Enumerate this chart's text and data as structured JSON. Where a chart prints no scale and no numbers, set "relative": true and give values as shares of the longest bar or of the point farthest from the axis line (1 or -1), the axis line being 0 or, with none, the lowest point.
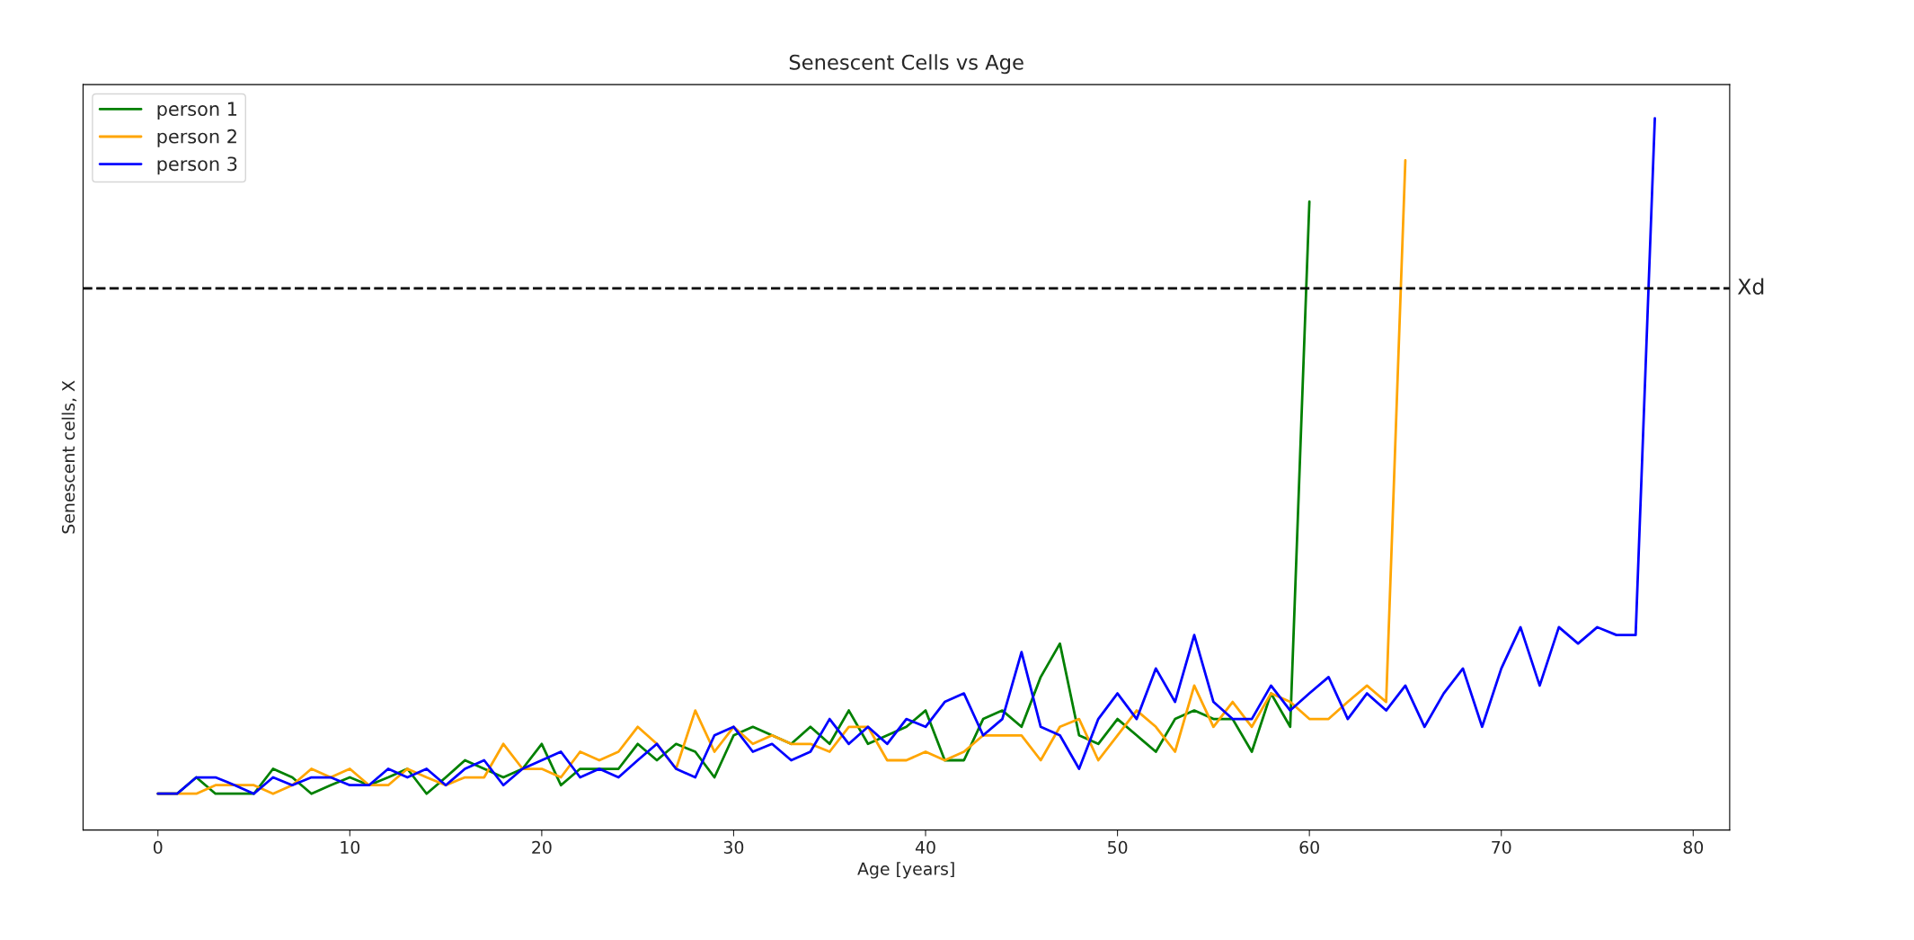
{
  "chart_data": {
    "type": "line",
    "title": "Senescent Cells vs Age",
    "xlabel": "Age [years]",
    "ylabel": "Senescent cells, X",
    "relative": true,
    "xlim": [
      -3.9,
      81.9
    ],
    "xticks": [
      0,
      10,
      20,
      30,
      40,
      50,
      60,
      70,
      80
    ],
    "legend": "top left",
    "grid": false,
    "marker": "none",
    "line_style": "solid",
    "ref_lines": [
      {
        "axis": "y",
        "value": 0.761,
        "label": "Xd",
        "color": "#000000",
        "line_style": "dashed"
      }
    ],
    "series": [
      {
        "name": "person 1",
        "color": "#008000",
        "x": [
          0,
          1,
          2,
          3,
          4,
          5,
          6,
          7,
          8,
          9,
          10,
          11,
          12,
          13,
          14,
          15,
          16,
          17,
          18,
          19,
          20,
          21,
          22,
          23,
          24,
          25,
          26,
          27,
          28,
          29,
          30,
          31,
          32,
          33,
          34,
          35,
          36,
          37,
          38,
          39,
          40,
          41,
          42,
          43,
          44,
          45,
          46,
          47,
          48,
          49,
          50,
          51,
          52,
          53,
          54,
          55,
          56,
          57,
          58,
          59,
          60
        ],
        "values": [
          0.051,
          0.051,
          0.074,
          0.051,
          0.051,
          0.051,
          0.086,
          0.074,
          0.051,
          0.063,
          0.074,
          0.063,
          0.074,
          0.086,
          0.051,
          0.074,
          0.098,
          0.086,
          0.074,
          0.086,
          0.121,
          0.063,
          0.086,
          0.086,
          0.086,
          0.121,
          0.098,
          0.121,
          0.11,
          0.074,
          0.133,
          0.145,
          0.133,
          0.121,
          0.145,
          0.121,
          0.168,
          0.121,
          0.133,
          0.145,
          0.168,
          0.098,
          0.098,
          0.156,
          0.168,
          0.145,
          0.215,
          0.262,
          0.133,
          0.121,
          0.156,
          0.133,
          0.11,
          0.156,
          0.168,
          0.156,
          0.156,
          0.11,
          0.192,
          0.145,
          0.883
        ]
      },
      {
        "name": "person 2",
        "color": "#ffa500",
        "x": [
          0,
          1,
          2,
          3,
          4,
          5,
          6,
          7,
          8,
          9,
          10,
          11,
          12,
          13,
          14,
          15,
          16,
          17,
          18,
          19,
          20,
          21,
          22,
          23,
          24,
          25,
          26,
          27,
          28,
          29,
          30,
          31,
          32,
          33,
          34,
          35,
          36,
          37,
          38,
          39,
          40,
          41,
          42,
          43,
          44,
          45,
          46,
          47,
          48,
          49,
          50,
          51,
          52,
          53,
          54,
          55,
          56,
          57,
          58,
          59,
          60,
          61,
          62,
          63,
          64,
          65
        ],
        "values": [
          0.051,
          0.051,
          0.051,
          0.063,
          0.063,
          0.063,
          0.051,
          0.063,
          0.086,
          0.074,
          0.086,
          0.063,
          0.063,
          0.086,
          0.074,
          0.063,
          0.074,
          0.074,
          0.121,
          0.086,
          0.086,
          0.074,
          0.11,
          0.098,
          0.11,
          0.145,
          0.121,
          0.086,
          0.168,
          0.11,
          0.145,
          0.121,
          0.133,
          0.121,
          0.121,
          0.11,
          0.145,
          0.145,
          0.098,
          0.098,
          0.11,
          0.098,
          0.11,
          0.133,
          0.133,
          0.133,
          0.098,
          0.145,
          0.156,
          0.098,
          0.133,
          0.168,
          0.145,
          0.11,
          0.203,
          0.145,
          0.18,
          0.145,
          0.192,
          0.18,
          0.156,
          0.156,
          0.18,
          0.203,
          0.18,
          0.941
        ]
      },
      {
        "name": "person 3",
        "color": "#0000ff",
        "x": [
          0,
          1,
          2,
          3,
          4,
          5,
          6,
          7,
          8,
          9,
          10,
          11,
          12,
          13,
          14,
          15,
          16,
          17,
          18,
          19,
          20,
          21,
          22,
          23,
          24,
          25,
          26,
          27,
          28,
          29,
          30,
          31,
          32,
          33,
          34,
          35,
          36,
          37,
          38,
          39,
          40,
          41,
          42,
          43,
          44,
          45,
          46,
          47,
          48,
          49,
          50,
          51,
          52,
          53,
          54,
          55,
          56,
          57,
          58,
          59,
          60,
          61,
          62,
          63,
          64,
          65,
          66,
          67,
          68,
          69,
          70,
          71,
          72,
          73,
          74,
          75,
          76,
          77,
          78
        ],
        "values": [
          0.051,
          0.051,
          0.074,
          0.074,
          0.063,
          0.051,
          0.074,
          0.063,
          0.074,
          0.074,
          0.063,
          0.063,
          0.086,
          0.074,
          0.086,
          0.063,
          0.086,
          0.098,
          0.063,
          0.086,
          0.098,
          0.11,
          0.074,
          0.086,
          0.074,
          0.098,
          0.121,
          0.086,
          0.074,
          0.133,
          0.145,
          0.11,
          0.121,
          0.098,
          0.11,
          0.156,
          0.121,
          0.145,
          0.121,
          0.156,
          0.145,
          0.18,
          0.192,
          0.133,
          0.156,
          0.25,
          0.145,
          0.133,
          0.086,
          0.156,
          0.192,
          0.156,
          0.227,
          0.18,
          0.274,
          0.18,
          0.156,
          0.156,
          0.203,
          0.168,
          0.192,
          0.215,
          0.156,
          0.192,
          0.168,
          0.203,
          0.145,
          0.192,
          0.227,
          0.145,
          0.227,
          0.285,
          0.203,
          0.285,
          0.262,
          0.285,
          0.274,
          0.274,
          1
        ]
      }
    ]
  }
}
